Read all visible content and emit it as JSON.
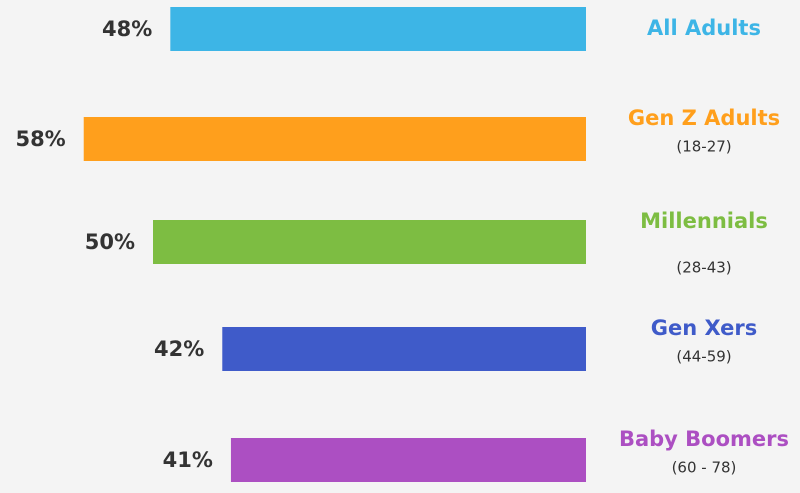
{
  "chart_data": {
    "type": "bar",
    "orientation": "horizontal",
    "categories": [
      "All Adults",
      "Gen Z Adults",
      "Millennials",
      "Gen Xers",
      "Baby Boomers"
    ],
    "subtitles": [
      null,
      "(18-27)",
      "(28-43)",
      "(44-59)",
      "(60 - 78)"
    ],
    "values": [
      48,
      58,
      50,
      42,
      41
    ],
    "value_labels": [
      "48%",
      "58%",
      "50%",
      "42%",
      "41%"
    ],
    "colors": [
      "#3db5e6",
      "#ff9f1c",
      "#7dbd42",
      "#3f5bc9",
      "#ac4fc2"
    ]
  }
}
